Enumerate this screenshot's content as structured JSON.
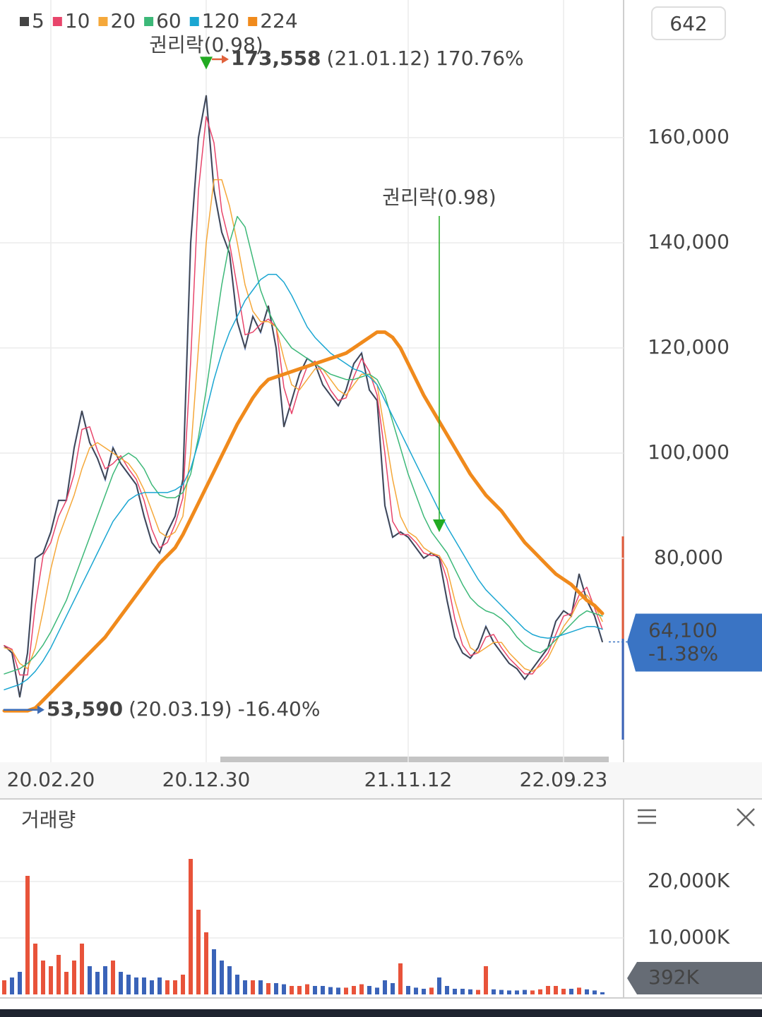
{
  "chart_data": [
    {
      "type": "line",
      "badge": 642,
      "categories": [
        null,
        null,
        null,
        null,
        null,
        null,
        "20.02.20",
        null,
        null,
        null,
        null,
        null,
        null,
        null,
        null,
        null,
        null,
        null,
        null,
        null,
        null,
        null,
        null,
        null,
        null,
        null,
        "20.12.30",
        null,
        null,
        null,
        null,
        null,
        null,
        null,
        null,
        null,
        null,
        null,
        null,
        null,
        null,
        null,
        null,
        null,
        null,
        null,
        null,
        null,
        null,
        null,
        null,
        null,
        "21.11.12",
        null,
        null,
        null,
        null,
        null,
        null,
        null,
        null,
        null,
        null,
        null,
        null,
        null,
        null,
        null,
        null,
        null,
        null,
        null,
        "22.09.23",
        null,
        null,
        null,
        null,
        null
      ],
      "values": [
        63400,
        62000,
        53590,
        62000,
        80000,
        81000,
        85000,
        91000,
        91000,
        101000,
        108000,
        102000,
        99000,
        95000,
        101000,
        98000,
        96000,
        94000,
        88000,
        83000,
        81000,
        85000,
        88000,
        95000,
        140000,
        160000,
        168000,
        150000,
        142000,
        138000,
        125000,
        120000,
        126000,
        123000,
        128000,
        120000,
        105000,
        110000,
        115000,
        118000,
        117000,
        113000,
        111000,
        109000,
        112000,
        117000,
        119000,
        112000,
        110000,
        90000,
        84000,
        85000,
        84000,
        82000,
        80000,
        81000,
        80000,
        72000,
        65000,
        62000,
        61000,
        63000,
        67000,
        64000,
        62000,
        60000,
        59000,
        57000,
        59000,
        61000,
        63000,
        68000,
        70000,
        69000,
        77000,
        72000,
        69000,
        64100
      ],
      "color": "#4a6cb3",
      "series": [
        {
          "name": "5",
          "color": "#444444",
          "width": 1.5,
          "values": [
            63400,
            62000,
            53590,
            62000,
            80000,
            81000,
            85000,
            91000,
            91000,
            101000,
            108000,
            102000,
            99000,
            95000,
            101000,
            98000,
            96000,
            94000,
            88000,
            83000,
            81000,
            85000,
            88000,
            95000,
            140000,
            160000,
            168000,
            150000,
            142000,
            138000,
            125000,
            120000,
            126000,
            123000,
            128000,
            120000,
            105000,
            110000,
            115000,
            118000,
            117000,
            113000,
            111000,
            109000,
            112000,
            117000,
            119000,
            112000,
            110000,
            90000,
            84000,
            85000,
            84000,
            82000,
            80000,
            81000,
            80000,
            72000,
            65000,
            62000,
            61000,
            63000,
            67000,
            64000,
            62000,
            60000,
            59000,
            57000,
            59000,
            61000,
            63000,
            68000,
            70000,
            69000,
            77000,
            72000,
            69000,
            64100
          ]
        },
        {
          "name": "10",
          "color": "#e8456b",
          "width": 1.5,
          "values": [
            63400,
            62700,
            57800,
            57800,
            71000,
            80500,
            83000,
            88000,
            91000,
            96000,
            104500,
            105000,
            100500,
            97000,
            98000,
            99500,
            97000,
            95000,
            91000,
            85500,
            82000,
            83000,
            86500,
            91500,
            117500,
            150000,
            164000,
            159000,
            146000,
            140000,
            131500,
            122500,
            123000,
            124500,
            125500,
            124000,
            112500,
            107500,
            112500,
            116500,
            117500,
            115000,
            112000,
            110000,
            110500,
            114500,
            118000,
            115500,
            111000,
            100000,
            87000,
            84500,
            84500,
            83000,
            81000,
            80500,
            80500,
            76000,
            68500,
            63500,
            61500,
            62000,
            65000,
            65500,
            63000,
            61000,
            59500,
            58000,
            58000,
            60000,
            62000,
            65500,
            69000,
            69500,
            73000,
            74500,
            70500,
            66500
          ]
        },
        {
          "name": "20",
          "color": "#f5a83a",
          "width": 1.5,
          "values": [
            63000,
            62500,
            60000,
            59000,
            63000,
            70000,
            78000,
            84000,
            88000,
            92000,
            97000,
            101000,
            102000,
            101000,
            100000,
            99000,
            98000,
            96000,
            93000,
            89000,
            85000,
            84000,
            85000,
            88000,
            100000,
            120000,
            140000,
            152000,
            152000,
            147000,
            140000,
            132000,
            127000,
            125000,
            125000,
            124000,
            118000,
            113000,
            112000,
            114000,
            116000,
            116000,
            114000,
            112000,
            111000,
            113000,
            115000,
            115000,
            113000,
            104000,
            95000,
            88000,
            85000,
            84000,
            82000,
            81000,
            80500,
            78000,
            72000,
            67000,
            63000,
            62000,
            63000,
            64000,
            64000,
            62000,
            60500,
            59000,
            58500,
            59500,
            61000,
            64000,
            67000,
            69000,
            72000,
            73000,
            71000,
            68000
          ]
        },
        {
          "name": "60",
          "color": "#3cb878",
          "width": 1.5,
          "values": [
            58000,
            58500,
            59000,
            60000,
            61500,
            63500,
            66000,
            69000,
            72000,
            76000,
            80000,
            84000,
            88000,
            92000,
            96000,
            99000,
            100000,
            99000,
            97000,
            94000,
            92000,
            91500,
            91500,
            92500,
            96000,
            103000,
            112000,
            122000,
            132000,
            140000,
            145000,
            143000,
            137000,
            131000,
            127000,
            124000,
            122000,
            120000,
            119000,
            118000,
            117000,
            116000,
            115000,
            114500,
            114000,
            114000,
            114500,
            115000,
            114000,
            111000,
            106000,
            101000,
            96000,
            92000,
            88000,
            85000,
            83000,
            81000,
            78000,
            75000,
            72500,
            71000,
            70000,
            69500,
            68500,
            67000,
            65000,
            63500,
            62500,
            62000,
            63000,
            64500,
            66000,
            67500,
            69000,
            70000,
            69500,
            69000
          ]
        },
        {
          "name": "120",
          "color": "#1aa6d2",
          "width": 1.5,
          "values": [
            55000,
            55500,
            56000,
            57000,
            58500,
            60500,
            63000,
            66000,
            69000,
            72000,
            75000,
            78000,
            81000,
            84000,
            87000,
            89000,
            91000,
            92000,
            92500,
            92500,
            92500,
            92500,
            93000,
            94000,
            97000,
            102000,
            108000,
            114000,
            119000,
            123000,
            126000,
            129000,
            131000,
            133000,
            134000,
            134000,
            132500,
            130000,
            127000,
            124000,
            122000,
            120500,
            119000,
            118000,
            117000,
            116000,
            115500,
            114500,
            113000,
            110000,
            107000,
            104000,
            101000,
            98000,
            95000,
            92000,
            89000,
            86000,
            83500,
            81000,
            78500,
            76000,
            74000,
            72500,
            71000,
            69500,
            68000,
            66500,
            65500,
            65000,
            64800,
            65000,
            65500,
            66000,
            66500,
            67000,
            67000,
            66500
          ]
        },
        {
          "name": "224",
          "color": "#f08a1c",
          "width": 5,
          "values": [
            51000,
            51000,
            51000,
            51000,
            51500,
            53000,
            54500,
            56000,
            57500,
            59000,
            60500,
            62000,
            63500,
            65000,
            67000,
            69000,
            71000,
            73000,
            75000,
            77000,
            79000,
            80500,
            82000,
            84500,
            87500,
            90500,
            93500,
            96500,
            99500,
            102500,
            105500,
            108000,
            110500,
            112500,
            114000,
            114500,
            115000,
            115500,
            116000,
            116500,
            117000,
            117500,
            118000,
            118500,
            119000,
            120000,
            121000,
            122000,
            123000,
            123000,
            122000,
            120000,
            117000,
            114000,
            111000,
            108500,
            106000,
            103500,
            101000,
            98500,
            96000,
            94000,
            92000,
            90500,
            89000,
            87000,
            85000,
            83000,
            81500,
            80000,
            78500,
            77000,
            76000,
            75000,
            73500,
            72000,
            71000,
            69500
          ]
        }
      ],
      "ylim": [
        41880,
        186170
      ],
      "yticks": [
        {
          "value": 80000,
          "label": "80,000"
        },
        {
          "value": 100000,
          "label": "100,000"
        },
        {
          "value": 120000,
          "label": "120,000"
        },
        {
          "value": 140000,
          "label": "140,000"
        },
        {
          "value": 160000,
          "label": "160,000"
        }
      ],
      "grid": true,
      "max": {
        "value": 173558,
        "label": "173,558",
        "date": "(21.01.12)",
        "change": {
          "value": 170.76,
          "label": "170.76%"
        },
        "index": 26,
        "color": "#e0623c"
      },
      "min": {
        "value": 53590,
        "label": "53,590",
        "date": "(20.03.19)",
        "change": {
          "value": -16.4,
          "label": "-16.40%"
        },
        "index": 2,
        "color": "#3f6db5"
      },
      "annotations": [
        {
          "text": "권리락(0.98)",
          "index": 26
        },
        {
          "text": "권리락(0.98)",
          "index": 56
        }
      ],
      "annotation_color": "#22aa22",
      "current": {
        "value": 64100,
        "label": "64,100",
        "change": {
          "value": -1.38,
          "label": "-1.38%"
        },
        "color": "#3a74c4"
      }
    },
    {
      "type": "bar",
      "title": "거래량",
      "values": [
        2500,
        3000,
        4000,
        21000,
        9000,
        6000,
        5000,
        7000,
        4000,
        6000,
        9000,
        5000,
        4000,
        5000,
        6000,
        4000,
        3500,
        3000,
        3000,
        2500,
        3000,
        2500,
        2500,
        3500,
        24000,
        15000,
        11000,
        8000,
        6000,
        5000,
        3500,
        2500,
        2500,
        2500,
        2000,
        2000,
        1800,
        1500,
        1500,
        1800,
        1500,
        1500,
        1300,
        1200,
        1200,
        1500,
        1800,
        1500,
        1200,
        2500,
        2000,
        5500,
        1500,
        1200,
        1000,
        1200,
        3000,
        1500,
        1000,
        1000,
        900,
        800,
        5000,
        900,
        800,
        700,
        700,
        800,
        700,
        900,
        1500,
        1500,
        1000,
        1000,
        1200,
        900,
        700,
        392
      ],
      "colors": {
        "up": "#e8533a",
        "down": "#3a63b8"
      },
      "ylim": [
        0,
        34250
      ],
      "yticks": [
        {
          "value": 10000,
          "label": "10,000K"
        },
        {
          "value": 20000,
          "label": "20,000K"
        }
      ],
      "grid": true,
      "current": {
        "value": 392,
        "label": "392K"
      }
    }
  ]
}
